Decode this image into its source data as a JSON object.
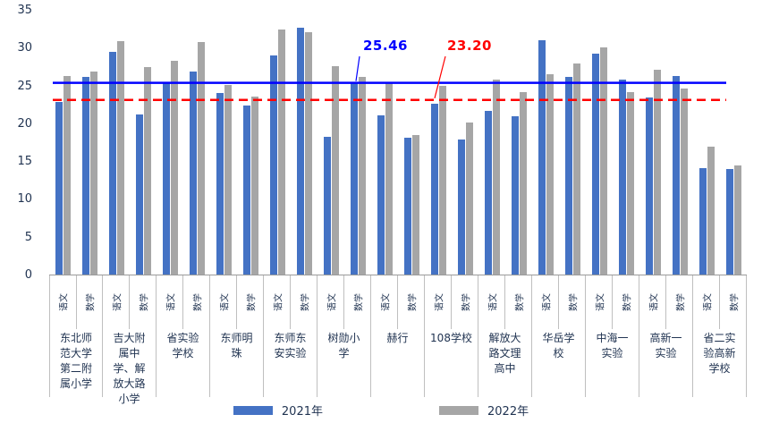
{
  "chart_data": {
    "type": "bar",
    "title": "",
    "xlabel": "",
    "ylabel": "",
    "y_axis": {
      "min": 0,
      "max": 35,
      "step": 5,
      "ticks": [
        0,
        5,
        10,
        15,
        20,
        25,
        30,
        35
      ]
    },
    "grid": "off",
    "legend_position": "bottom",
    "series_meta": [
      {
        "name": "2021年",
        "color": "#4472C4"
      },
      {
        "name": "2022年",
        "color": "#A6A6A6"
      }
    ],
    "ref_lines": [
      {
        "label": "25.46",
        "value": 25.46,
        "color": "#0000FF",
        "style": "solid"
      },
      {
        "label": "23.20",
        "value": 23.2,
        "color": "#FF0000",
        "style": "dashed"
      }
    ],
    "groups": [
      {
        "name": "东北师范大学第二附属小学",
        "items": [
          {
            "label": "语文",
            "v2021": 22.8,
            "v2022": 26.3
          },
          {
            "label": "数学",
            "v2021": 26.1,
            "v2022": 26.9
          }
        ]
      },
      {
        "name": "吉大附属中学、解放大路小学",
        "items": [
          {
            "label": "语文",
            "v2021": 29.4,
            "v2022": 30.9
          },
          {
            "label": "数学",
            "v2021": 21.2,
            "v2022": 27.4
          }
        ]
      },
      {
        "name": "省实验学校",
        "items": [
          {
            "label": "语文",
            "v2021": 25.3,
            "v2022": 28.3
          },
          {
            "label": "数学",
            "v2021": 26.8,
            "v2022": 30.8
          }
        ]
      },
      {
        "name": "东师明珠",
        "items": [
          {
            "label": "语文",
            "v2021": 24.0,
            "v2022": 25.1
          },
          {
            "label": "数学",
            "v2021": 22.3,
            "v2022": 23.5
          }
        ]
      },
      {
        "name": "东师东安实验",
        "items": [
          {
            "label": "语文",
            "v2021": 29.0,
            "v2022": 32.4
          },
          {
            "label": "数学",
            "v2021": 32.6,
            "v2022": 32.1
          }
        ]
      },
      {
        "name": "树勋小学",
        "items": [
          {
            "label": "语文",
            "v2021": 18.2,
            "v2022": 27.6
          },
          {
            "label": "数学",
            "v2021": 25.4,
            "v2022": 26.1
          }
        ]
      },
      {
        "name": "赫行",
        "items": [
          {
            "label": "语文",
            "v2021": 21.1,
            "v2022": 25.3
          },
          {
            "label": "数学",
            "v2021": 18.1,
            "v2022": 18.5
          }
        ]
      },
      {
        "name": "108学校",
        "items": [
          {
            "label": "语文",
            "v2021": 22.6,
            "v2022": 25.0
          },
          {
            "label": "数学",
            "v2021": 17.8,
            "v2022": 20.1
          }
        ]
      },
      {
        "name": "解放大路文理高中",
        "items": [
          {
            "label": "语文",
            "v2021": 21.6,
            "v2022": 25.8
          },
          {
            "label": "数学",
            "v2021": 20.9,
            "v2022": 24.1
          }
        ]
      },
      {
        "name": "华岳学校",
        "items": [
          {
            "label": "语文",
            "v2021": 31.0,
            "v2022": 26.5
          },
          {
            "label": "数学",
            "v2021": 26.1,
            "v2022": 27.9
          }
        ]
      },
      {
        "name": "中海一实验",
        "items": [
          {
            "label": "语文",
            "v2021": 29.2,
            "v2022": 30.0
          },
          {
            "label": "数学",
            "v2021": 25.8,
            "v2022": 24.1
          }
        ]
      },
      {
        "name": "高新一实验",
        "items": [
          {
            "label": "语文",
            "v2021": 23.4,
            "v2022": 27.1
          },
          {
            "label": "数学",
            "v2021": 26.2,
            "v2022": 24.6
          }
        ]
      },
      {
        "name": "省二实验高新学校",
        "items": [
          {
            "label": "语文",
            "v2021": 14.1,
            "v2022": 16.9
          },
          {
            "label": "数学",
            "v2021": 14.0,
            "v2022": 14.4
          }
        ]
      }
    ]
  }
}
